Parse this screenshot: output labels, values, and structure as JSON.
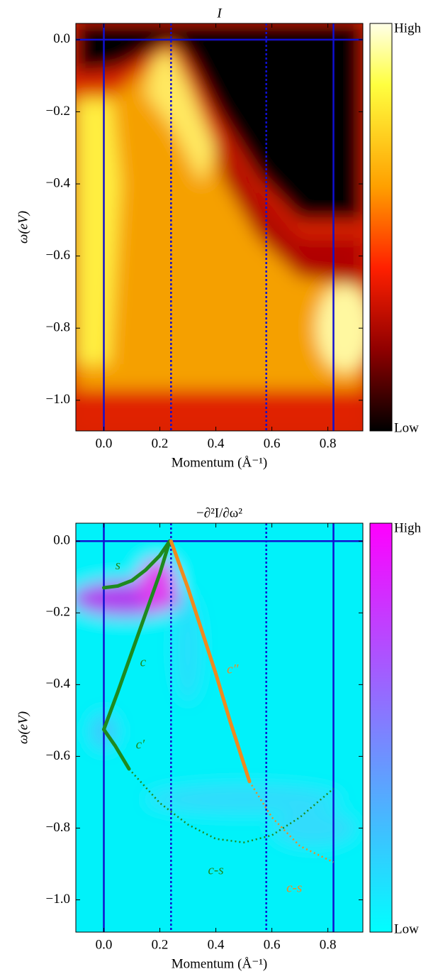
{
  "chart_data": [
    {
      "type": "heatmap",
      "title": "I",
      "xlabel": "Momentum (Å⁻¹)",
      "ylabel": "ω(eV)",
      "xlim": [
        -0.1,
        0.925
      ],
      "ylim": [
        -1.085,
        0.045
      ],
      "xticks": [
        {
          "value": 0,
          "label": "0.0"
        },
        {
          "value": 0.2,
          "label": "0.2"
        },
        {
          "value": 0.4,
          "label": "0.4"
        },
        {
          "value": 0.6,
          "label": "0.6"
        },
        {
          "value": 0.8,
          "label": "0.8"
        }
      ],
      "yticks": [
        {
          "value": 0,
          "label": "0.0"
        },
        {
          "value": -0.2,
          "label": "−0.2"
        },
        {
          "value": -0.4,
          "label": "−0.4"
        },
        {
          "value": -0.6,
          "label": "−0.6"
        },
        {
          "value": -0.8,
          "label": "−0.8"
        },
        {
          "value": -1.0,
          "label": "−1.0"
        }
      ],
      "vlines": [
        {
          "value": 0,
          "style": "solid",
          "color": "#1010d0"
        },
        {
          "value": 0.24,
          "style": "dotted",
          "color": "#1010d0"
        },
        {
          "value": 0.58,
          "style": "dotted",
          "color": "#1010d0"
        },
        {
          "value": 0.82,
          "style": "solid",
          "color": "#1010d0"
        }
      ],
      "hlines": [
        {
          "value": 0,
          "style": "solid",
          "color": "#1010d0"
        }
      ],
      "colorbar_labels": [
        "High",
        "Low"
      ]
    },
    {
      "type": "heatmap",
      "title": "−∂²I/∂ω²",
      "xlabel": "Momentum (Å⁻¹)",
      "ylabel": "ω(eV)",
      "xlim": [
        -0.1,
        0.925
      ],
      "ylim": [
        -1.09,
        0.05
      ],
      "xticks": [
        {
          "value": 0,
          "label": "0.0"
        },
        {
          "value": 0.2,
          "label": "0.2"
        },
        {
          "value": 0.4,
          "label": "0.4"
        },
        {
          "value": 0.6,
          "label": "0.6"
        },
        {
          "value": 0.8,
          "label": "0.8"
        }
      ],
      "yticks": [
        {
          "value": 0,
          "label": "0.0"
        },
        {
          "value": -0.2,
          "label": "−0.2"
        },
        {
          "value": -0.4,
          "label": "−0.4"
        },
        {
          "value": -0.6,
          "label": "−0.6"
        },
        {
          "value": -0.8,
          "label": "−0.8"
        },
        {
          "value": -1.0,
          "label": "−1.0"
        }
      ],
      "vlines": [
        {
          "value": 0,
          "style": "solid",
          "color": "#1010d0"
        },
        {
          "value": 0.24,
          "style": "dotted",
          "color": "#1010d0"
        },
        {
          "value": 0.58,
          "style": "dotted",
          "color": "#1010d0"
        },
        {
          "value": 0.82,
          "style": "solid",
          "color": "#1010d0"
        }
      ],
      "hlines": [
        {
          "value": 0,
          "style": "solid",
          "color": "#1010d0"
        }
      ],
      "curves": [
        {
          "color": "#1e8a1e",
          "style": "solid",
          "x": [
            0,
            0.05,
            0.1,
            0.15,
            0.2,
            0.235
          ],
          "y": [
            -0.13,
            -0.125,
            -0.11,
            -0.08,
            -0.04,
            0
          ]
        },
        {
          "color": "#1e8a1e",
          "style": "solid",
          "x": [
            0,
            0.05,
            0.1,
            0.15,
            0.2,
            0.235
          ],
          "y": [
            -0.525,
            -0.42,
            -0.31,
            -0.2,
            -0.09,
            0
          ]
        },
        {
          "color": "#1e8a1e",
          "style": "solid",
          "x": [
            0,
            0.04,
            0.09
          ],
          "y": [
            -0.525,
            -0.57,
            -0.635
          ]
        },
        {
          "color": "#1e8a1e",
          "style": "dotted",
          "x": [
            0.09,
            0.2,
            0.3,
            0.4,
            0.5,
            0.6,
            0.7,
            0.82
          ],
          "y": [
            -0.635,
            -0.73,
            -0.79,
            -0.83,
            -0.84,
            -0.82,
            -0.77,
            -0.69
          ]
        },
        {
          "color": "#f08a1e",
          "style": "solid",
          "x": [
            0.24,
            0.3,
            0.35,
            0.4,
            0.45,
            0.52
          ],
          "y": [
            0,
            -0.13,
            -0.25,
            -0.37,
            -0.5,
            -0.67
          ]
        },
        {
          "color": "#f08a1e",
          "style": "dotted",
          "x": [
            0.52,
            0.6,
            0.7,
            0.82
          ],
          "y": [
            -0.67,
            -0.77,
            -0.85,
            -0.895
          ]
        }
      ],
      "annotations": [
        {
          "text": "s",
          "color": "#1e8a1e"
        },
        {
          "text": "c",
          "color": "#1e8a1e"
        },
        {
          "text": "c′",
          "color": "#1e8a1e"
        },
        {
          "text": "c″",
          "color": "#f08a1e"
        },
        {
          "text": "c-s",
          "color": "#1e8a1e"
        },
        {
          "text": "c-s",
          "color": "#f08a1e"
        }
      ],
      "colorbar_labels": [
        "High",
        "Low"
      ]
    }
  ]
}
